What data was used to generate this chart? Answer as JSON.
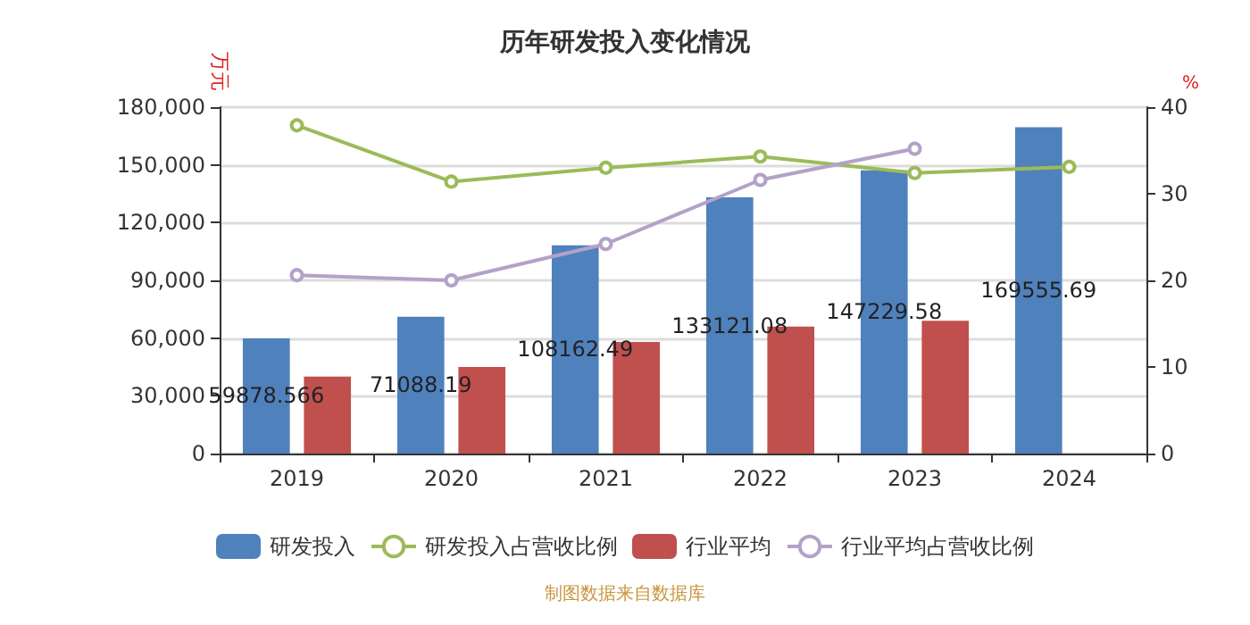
{
  "chart_data": {
    "type": "bar",
    "title": "历年研发投入变化情况",
    "ylabel": "万元",
    "y2label": "%",
    "categories": [
      "2019",
      "2020",
      "2021",
      "2022",
      "2023",
      "2024"
    ],
    "series": [
      {
        "name": "研发投入",
        "color": "#4f81bd",
        "values": [
          59878.566,
          71088.19,
          108162.49,
          133121.08,
          147229.58,
          169555.69
        ],
        "value_labels": [
          "59878.566",
          "71088.19",
          "108162.49",
          "133121.08",
          "147229.58",
          "169555.69"
        ]
      },
      {
        "name": "研发投入占营收比例",
        "type": "line",
        "axis": "y2",
        "color": "#9bbb59",
        "values": [
          37.9,
          31.4,
          33.0,
          34.3,
          32.4,
          33.1
        ]
      },
      {
        "name": "行业平均",
        "color": "#c0504d",
        "values": [
          40000,
          45000,
          58000,
          66000,
          69000,
          null
        ]
      },
      {
        "name": "行业平均占营收比例",
        "type": "line",
        "axis": "y2",
        "color": "#b3a2c7",
        "values": [
          20.6,
          20.0,
          24.2,
          31.6,
          35.2,
          null
        ]
      }
    ],
    "ylim": [
      0,
      180000
    ],
    "yticks": [
      0,
      {
        "value": 30000,
        "label": "30,000"
      },
      {
        "value": 60000,
        "label": "60,000"
      },
      {
        "value": 90000,
        "label": "90,000"
      },
      {
        "value": 120000,
        "label": "120,000"
      },
      {
        "value": 150000,
        "label": "150,000"
      },
      {
        "value": 180000,
        "label": "180,000"
      }
    ],
    "y2lim": [
      0,
      40
    ],
    "y2ticks": [
      0,
      10,
      20,
      30,
      40
    ],
    "grid": "y",
    "legend": "bottom",
    "marker": "circle",
    "annotations": [
      "制图数据来自数据库"
    ]
  }
}
